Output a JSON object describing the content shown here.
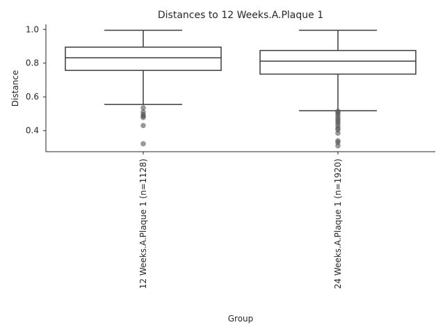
{
  "chart_data": {
    "type": "box",
    "title": "Distances to 12 Weeks.A.Plaque 1",
    "xlabel": "Group",
    "ylabel": "Distance",
    "ylim": [
      0.275,
      1.03
    ],
    "yticks": [
      0.4,
      0.6,
      0.8,
      1.0
    ],
    "ytick_labels": [
      "0.4",
      "0.6",
      "0.8",
      "1.0"
    ],
    "grid": false,
    "colors": {
      "box_edge": "#3a3a3a",
      "box_fill": "#ffffff",
      "outlier": "#555555",
      "axis": "#262626"
    },
    "categories": [
      "12 Weeks.A.Plaque 1 (n=1128)",
      "24 Weeks.A.Plaque 1 (n=1920)"
    ],
    "boxes": [
      {
        "label": "12 Weeks.A.Plaque 1 (n=1128)",
        "whisker_low": 0.555,
        "q1": 0.757,
        "median": 0.832,
        "q3": 0.895,
        "whisker_high": 0.995,
        "outliers": [
          0.535,
          0.51,
          0.495,
          0.485,
          0.478,
          0.43,
          0.322
        ]
      },
      {
        "label": "24 Weeks.A.Plaque 1 (n=1920)",
        "whisker_low": 0.518,
        "q1": 0.735,
        "median": 0.812,
        "q3": 0.875,
        "whisker_high": 0.995,
        "outliers": [
          0.515,
          0.505,
          0.495,
          0.48,
          0.468,
          0.455,
          0.445,
          0.43,
          0.415,
          0.405,
          0.385,
          0.34,
          0.33,
          0.31
        ]
      }
    ]
  }
}
